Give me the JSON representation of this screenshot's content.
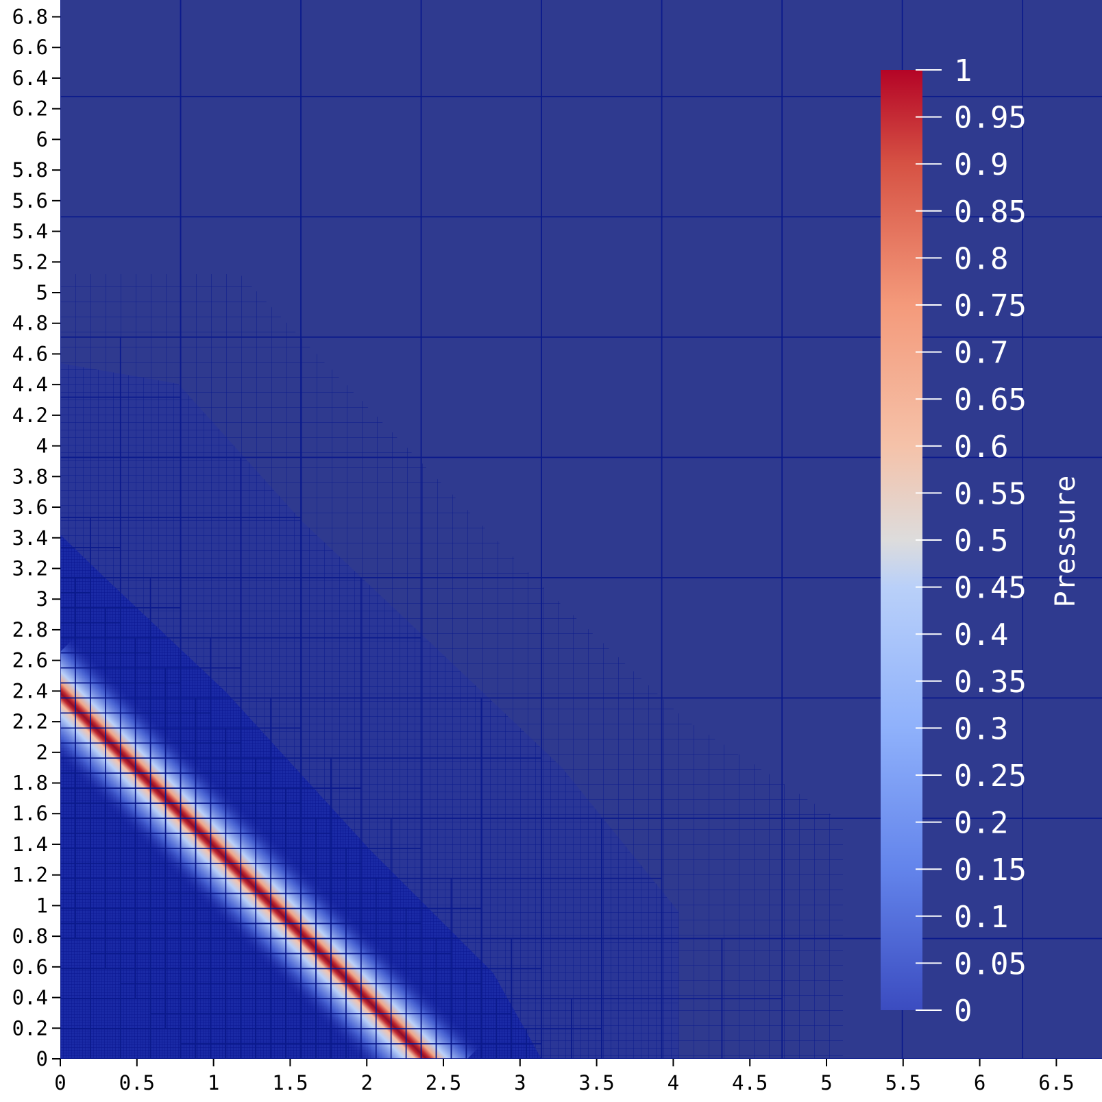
{
  "chart_data": {
    "type": "heatmap",
    "field_name": "Pressure",
    "colormap": "coolwarm",
    "colors": {
      "background_field": "#2f3a8f",
      "mesh_line": "#0b1a8c",
      "dense_low": "#1e2aa8",
      "band_core": "#b4112a",
      "band_mid": "#e9d5cf",
      "band_edge": "#8fb1fb",
      "colorbar_top": "#b40426",
      "colorbar_bottom": "#3b4cc0"
    },
    "xlim": [
      0,
      6.8
    ],
    "ylim": [
      0,
      6.9
    ],
    "x_ticks": [
      "0",
      "0.5",
      "1",
      "1.5",
      "2",
      "2.5",
      "3",
      "3.5",
      "4",
      "4.5",
      "5",
      "5.5",
      "6",
      "6.5"
    ],
    "y_ticks": [
      "0",
      "0.2",
      "0.4",
      "0.6",
      "0.8",
      "1",
      "1.2",
      "1.4",
      "1.6",
      "1.8",
      "2",
      "2.2",
      "2.4",
      "2.6",
      "2.8",
      "3",
      "3.2",
      "3.4",
      "3.6",
      "3.8",
      "4",
      "4.2",
      "4.4",
      "4.6",
      "4.8",
      "5",
      "5.2",
      "5.4",
      "5.6",
      "5.8",
      "6",
      "6.2",
      "6.4",
      "6.6",
      "6.8"
    ],
    "colorbar": {
      "range": [
        0,
        1
      ],
      "ticks": [
        "0",
        "0.05",
        "0.1",
        "0.15",
        "0.2",
        "0.25",
        "0.3",
        "0.35",
        "0.4",
        "0.45",
        "0.5",
        "0.55",
        "0.6",
        "0.65",
        "0.7",
        "0.75",
        "0.8",
        "0.85",
        "0.9",
        "0.95",
        "1"
      ],
      "orientation": "vertical",
      "placement": "right"
    },
    "front": {
      "description_values": {
        "x_intercept": 2.4,
        "y_intercept": 2.4
      },
      "peak_value": 1.0,
      "ambient_value": 0.0
    },
    "coarse_cell_size": 0.785
  }
}
